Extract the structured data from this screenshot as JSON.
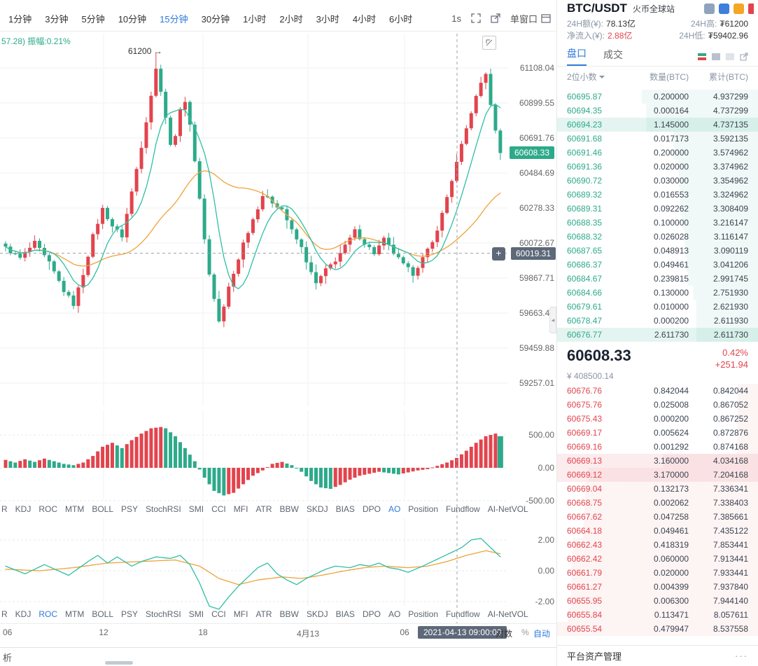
{
  "colors": {
    "up": "#e2444d",
    "down": "#2daa8a",
    "accent": "#2f7bd9",
    "ma_fast": "#2fbfa5",
    "ma_slow": "#f0a239",
    "badge_bg": "#5d6878"
  },
  "icons": {
    "plus": "+",
    "more": "···",
    "collapse_arrow": "◂"
  },
  "toolbar": {
    "timeframes": [
      {
        "label": "1分钟"
      },
      {
        "label": "3分钟"
      },
      {
        "label": "5分钟"
      },
      {
        "label": "10分钟"
      },
      {
        "label": "15分钟",
        "active": true
      },
      {
        "label": "30分钟"
      },
      {
        "label": "1小时"
      },
      {
        "label": "2小时"
      },
      {
        "label": "3小时"
      },
      {
        "label": "4小时"
      },
      {
        "label": "6小时"
      }
    ],
    "one_s": "1s",
    "single_window": "单窗口"
  },
  "chart": {
    "info_text": "57.28) 振幅:0.21%",
    "annotation": "61200 →",
    "price_axis": [
      "61108.04",
      "60899.55",
      "60691.76",
      "60484.69",
      "60278.33",
      "60072.67",
      "59867.71",
      "59663.45",
      "59459.88",
      "59257.01"
    ],
    "last_price_badge": "60608.33",
    "crosshair_badge": "60019.31",
    "ao_axis": [
      "500.00",
      "0.00",
      "-500.00"
    ],
    "roc_axis": [
      "2.00",
      "0.00",
      "-2.00"
    ],
    "time_axis": [
      {
        "label": "06",
        "x": 4
      },
      {
        "label": "12",
        "x": 148
      },
      {
        "label": "18",
        "x": 290
      },
      {
        "label": "4月13",
        "x": 440
      },
      {
        "label": "06",
        "x": 578
      }
    ],
    "timestamp_badge": "2021-04-13 09:00:00",
    "scale_log": "对数",
    "scale_pct": "%",
    "scale_auto": "自动",
    "indicators": {
      "items": [
        "R",
        "KDJ",
        "ROC",
        "MTM",
        "BOLL",
        "PSY",
        "StochRSI",
        "SMI",
        "CCI",
        "MFI",
        "ATR",
        "BBW",
        "SKDJ",
        "BIAS",
        "DPO",
        "AO",
        "Position",
        "Fundflow",
        "AI-NetVOL"
      ],
      "active_top": "AO",
      "active_bottom": "ROC"
    }
  },
  "chart_data": {
    "type": "candlestick",
    "pair": "BTC/USDT",
    "interval": "15分钟",
    "price_axis_values": [
      61108.04,
      60899.55,
      60691.76,
      60484.69,
      60278.33,
      60072.67,
      59867.71,
      59663.45,
      59459.88,
      59257.01
    ],
    "last_price": 60608.33,
    "crosshair_price": 60019.31,
    "candle_count": 103,
    "spike_high": {
      "index": 31,
      "price": 61200
    },
    "close_keypoints": [
      [
        0,
        60050
      ],
      [
        3,
        59990
      ],
      [
        6,
        60080
      ],
      [
        9,
        59960
      ],
      [
        12,
        59800
      ],
      [
        14,
        59720
      ],
      [
        16,
        59900
      ],
      [
        18,
        60120
      ],
      [
        20,
        60280
      ],
      [
        22,
        60180
      ],
      [
        24,
        60120
      ],
      [
        26,
        60380
      ],
      [
        28,
        60650
      ],
      [
        30,
        60950
      ],
      [
        31,
        61100
      ],
      [
        32,
        60980
      ],
      [
        33,
        60820
      ],
      [
        34,
        60650
      ],
      [
        35,
        60720
      ],
      [
        36,
        60850
      ],
      [
        37,
        60920
      ],
      [
        38,
        60780
      ],
      [
        39,
        60550
      ],
      [
        40,
        60350
      ],
      [
        41,
        60100
      ],
      [
        42,
        59900
      ],
      [
        43,
        59750
      ],
      [
        44,
        59620
      ],
      [
        45,
        59700
      ],
      [
        46,
        59820
      ],
      [
        47,
        59900
      ],
      [
        49,
        60080
      ],
      [
        51,
        60220
      ],
      [
        53,
        60360
      ],
      [
        55,
        60320
      ],
      [
        57,
        60280
      ],
      [
        59,
        60150
      ],
      [
        61,
        60050
      ],
      [
        63,
        59900
      ],
      [
        64,
        59840
      ],
      [
        66,
        59920
      ],
      [
        68,
        59980
      ],
      [
        70,
        60060
      ],
      [
        72,
        60150
      ],
      [
        74,
        60080
      ],
      [
        76,
        60020
      ],
      [
        78,
        60100
      ],
      [
        80,
        60020
      ],
      [
        82,
        59950
      ],
      [
        84,
        59900
      ],
      [
        86,
        59990
      ],
      [
        88,
        60080
      ],
      [
        90,
        60250
      ],
      [
        92,
        60450
      ],
      [
        94,
        60650
      ],
      [
        96,
        60850
      ],
      [
        98,
        61020
      ],
      [
        99,
        61080
      ],
      [
        100,
        60880
      ],
      [
        101,
        60750
      ],
      [
        102,
        60608
      ]
    ],
    "ao": {
      "type": "histogram",
      "ylim": [
        -500,
        500
      ],
      "keypoints": [
        [
          0,
          120
        ],
        [
          2,
          80
        ],
        [
          4,
          130
        ],
        [
          6,
          90
        ],
        [
          8,
          140
        ],
        [
          10,
          100
        ],
        [
          12,
          60
        ],
        [
          14,
          40
        ],
        [
          16,
          80
        ],
        [
          18,
          180
        ],
        [
          20,
          320
        ],
        [
          22,
          380
        ],
        [
          24,
          300
        ],
        [
          26,
          420
        ],
        [
          28,
          520
        ],
        [
          30,
          600
        ],
        [
          32,
          620
        ],
        [
          33,
          600
        ],
        [
          35,
          480
        ],
        [
          37,
          300
        ],
        [
          39,
          100
        ],
        [
          41,
          -150
        ],
        [
          43,
          -350
        ],
        [
          45,
          -420
        ],
        [
          47,
          -380
        ],
        [
          49,
          -250
        ],
        [
          51,
          -120
        ],
        [
          53,
          -40
        ],
        [
          55,
          60
        ],
        [
          57,
          90
        ],
        [
          59,
          40
        ],
        [
          61,
          -60
        ],
        [
          63,
          -200
        ],
        [
          65,
          -300
        ],
        [
          67,
          -320
        ],
        [
          69,
          -260
        ],
        [
          71,
          -180
        ],
        [
          73,
          -120
        ],
        [
          75,
          -90
        ],
        [
          77,
          -60
        ],
        [
          79,
          -80
        ],
        [
          81,
          -100
        ],
        [
          83,
          -70
        ],
        [
          85,
          -40
        ],
        [
          87,
          -20
        ],
        [
          89,
          30
        ],
        [
          91,
          80
        ],
        [
          93,
          150
        ],
        [
          95,
          260
        ],
        [
          97,
          380
        ],
        [
          99,
          480
        ],
        [
          101,
          520
        ],
        [
          102,
          480
        ]
      ]
    },
    "roc": {
      "type": "line",
      "ylim": [
        -2,
        2
      ],
      "line_keypoints": [
        [
          0,
          0.3
        ],
        [
          4,
          -0.2
        ],
        [
          8,
          0.4
        ],
        [
          13,
          -0.3
        ],
        [
          17,
          0.6
        ],
        [
          19,
          1.0
        ],
        [
          21,
          0.5
        ],
        [
          23,
          0.9
        ],
        [
          26,
          0.3
        ],
        [
          28,
          0.6
        ],
        [
          31,
          0.9
        ],
        [
          34,
          0.8
        ],
        [
          36,
          1.0
        ],
        [
          38,
          0.4
        ],
        [
          40,
          -0.8
        ],
        [
          42,
          -2.3
        ],
        [
          44,
          -2.5
        ],
        [
          46,
          -1.7
        ],
        [
          48,
          -1.0
        ],
        [
          50,
          -0.4
        ],
        [
          52,
          0.2
        ],
        [
          54,
          0.5
        ],
        [
          56,
          -0.2
        ],
        [
          58,
          -0.6
        ],
        [
          60,
          -0.9
        ],
        [
          62,
          -0.5
        ],
        [
          64,
          -0.2
        ],
        [
          66,
          0.1
        ],
        [
          68,
          0.3
        ],
        [
          71,
          0.2
        ],
        [
          73,
          0.4
        ],
        [
          75,
          0.3
        ],
        [
          77,
          0.5
        ],
        [
          79,
          0.2
        ],
        [
          81,
          0.1
        ],
        [
          83,
          -0.1
        ],
        [
          86,
          0.3
        ],
        [
          88,
          0.6
        ],
        [
          90,
          0.9
        ],
        [
          92,
          1.2
        ],
        [
          94,
          1.5
        ],
        [
          96,
          2.0
        ],
        [
          98,
          2.1
        ],
        [
          100,
          1.5
        ],
        [
          102,
          0.9
        ]
      ],
      "signal_keypoints": [
        [
          0,
          0.1
        ],
        [
          7,
          0.0
        ],
        [
          14,
          0.2
        ],
        [
          21,
          0.5
        ],
        [
          28,
          0.6
        ],
        [
          35,
          0.7
        ],
        [
          40,
          0.3
        ],
        [
          44,
          -0.5
        ],
        [
          48,
          -0.9
        ],
        [
          52,
          -0.6
        ],
        [
          57,
          -0.4
        ],
        [
          61,
          -0.5
        ],
        [
          65,
          -0.3
        ],
        [
          70,
          0.0
        ],
        [
          74,
          0.2
        ],
        [
          78,
          0.3
        ],
        [
          83,
          0.2
        ],
        [
          87,
          0.3
        ],
        [
          91,
          0.6
        ],
        [
          95,
          1.0
        ],
        [
          99,
          1.3
        ],
        [
          102,
          1.1
        ]
      ]
    }
  },
  "ticker": {
    "pair": "BTC/USDT",
    "exchange": "火币全球站",
    "vol_label": "24H额(¥):",
    "vol": "78.13亿",
    "high_label": "24H高:",
    "high": "₮61200",
    "netflow_label": "净流入(¥):",
    "netflow": "2.88亿",
    "low_label": "24H低:",
    "low": "₮59402.96",
    "tabs": [
      {
        "label": "盘口",
        "active": true
      },
      {
        "label": "成交"
      }
    ],
    "footer": "平台资产管理"
  },
  "book": {
    "precision": "2位小数",
    "col_qty": "数量(BTC)",
    "col_cum": "累计(BTC)",
    "asks": [
      [
        "60695.87",
        "0.200000",
        "4.937299"
      ],
      [
        "60694.35",
        "0.000164",
        "4.737299"
      ],
      [
        "60694.23",
        "1.145000",
        "4.737135"
      ],
      [
        "60691.68",
        "0.017173",
        "3.592135"
      ],
      [
        "60691.46",
        "0.200000",
        "3.574962"
      ],
      [
        "60691.36",
        "0.020000",
        "3.374962"
      ],
      [
        "60690.72",
        "0.030000",
        "3.354962"
      ],
      [
        "60689.32",
        "0.016553",
        "3.324962"
      ],
      [
        "60689.31",
        "0.092262",
        "3.308409"
      ],
      [
        "60688.35",
        "0.100000",
        "3.216147"
      ],
      [
        "60688.32",
        "0.026028",
        "3.116147"
      ],
      [
        "60687.65",
        "0.048913",
        "3.090119"
      ],
      [
        "60686.37",
        "0.049461",
        "3.041206"
      ],
      [
        "60684.67",
        "0.239815",
        "2.991745"
      ],
      [
        "60684.66",
        "0.130000",
        "2.751930"
      ],
      [
        "60679.61",
        "0.010000",
        "2.621930"
      ],
      [
        "60678.47",
        "0.000200",
        "2.611930"
      ],
      [
        "60676.77",
        "2.611730",
        "2.611730"
      ]
    ],
    "hl_asks": [
      2,
      17
    ],
    "bids": [
      [
        "60676.76",
        "0.842044",
        "0.842044"
      ],
      [
        "60675.76",
        "0.025008",
        "0.867052"
      ],
      [
        "60675.43",
        "0.000200",
        "0.867252"
      ],
      [
        "60669.17",
        "0.005624",
        "0.872876"
      ],
      [
        "60669.16",
        "0.001292",
        "0.874168"
      ],
      [
        "60669.13",
        "3.160000",
        "4.034168"
      ],
      [
        "60669.12",
        "3.170000",
        "7.204168"
      ],
      [
        "60669.04",
        "0.132173",
        "7.336341"
      ],
      [
        "60668.75",
        "0.002062",
        "7.338403"
      ],
      [
        "60667.62",
        "0.047258",
        "7.385661"
      ],
      [
        "60664.18",
        "0.049461",
        "7.435122"
      ],
      [
        "60662.43",
        "0.418319",
        "7.853441"
      ],
      [
        "60662.42",
        "0.060000",
        "7.913441"
      ],
      [
        "60661.79",
        "0.020000",
        "7.933441"
      ],
      [
        "60661.27",
        "0.004399",
        "7.937840"
      ],
      [
        "60655.95",
        "0.006300",
        "7.944140"
      ],
      [
        "60655.84",
        "0.113471",
        "8.057611"
      ],
      [
        "60655.54",
        "0.479947",
        "8.537558"
      ]
    ],
    "hl_bids": [
      5,
      6
    ],
    "last": {
      "price": "60608.33",
      "pct": "0.42%",
      "change": "+251.94",
      "cny": "¥ 408500.14"
    }
  },
  "misc": {
    "partial_left_text": "析"
  }
}
